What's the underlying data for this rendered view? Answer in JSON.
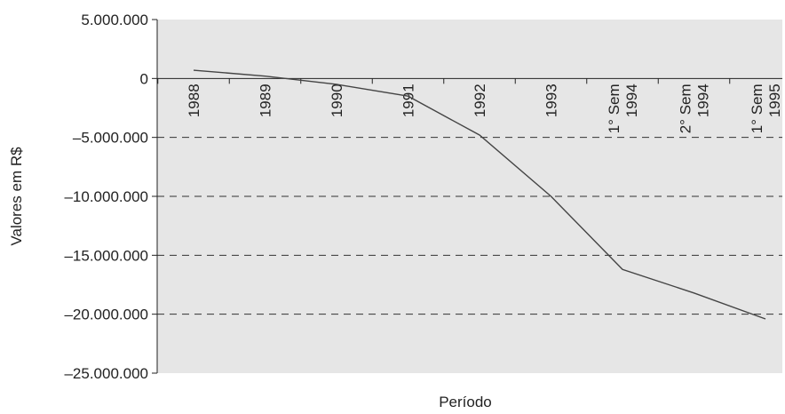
{
  "chart_data": {
    "type": "line",
    "title": "",
    "xlabel": "Período",
    "ylabel": "Valores em R$",
    "categories": [
      [
        "1988"
      ],
      [
        "1989"
      ],
      [
        "1990"
      ],
      [
        "1991"
      ],
      [
        "1992"
      ],
      [
        "1993"
      ],
      [
        "1° Sem",
        "1994"
      ],
      [
        "2° Sem",
        "1994"
      ],
      [
        "1° Sem",
        "1995"
      ]
    ],
    "y_tick_labels": [
      "5.000.000",
      "0",
      "-5.000.000",
      "-10.000.000",
      "-15.000.000",
      "-20.000.000",
      "-25.000.000"
    ],
    "y_ticks": [
      5000000,
      0,
      -5000000,
      -10000000,
      -15000000,
      -20000000,
      -25000000
    ],
    "ylim": [
      -25000000,
      5000000
    ],
    "values": [
      700000,
      200000,
      -500000,
      -1500000,
      -4800000,
      -10000000,
      -16200000,
      -18200000,
      -20400000
    ],
    "grid": "dashed horizontal lines at -5.000.000, -10.000.000, -15.000.000, -20.000.000",
    "colors": {
      "plot_background": "#e6e6e6",
      "line": "#444444",
      "grid": "#333333"
    }
  }
}
